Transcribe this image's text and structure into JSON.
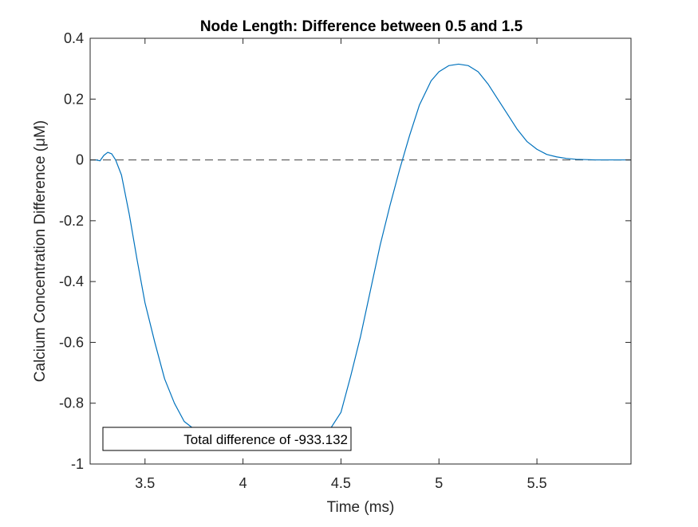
{
  "chart_data": {
    "type": "line",
    "title": "Node Length: Difference between 0.5 and 1.5",
    "xlabel": "Time (ms)",
    "ylabel": "Calcium Concentration Difference (μM)",
    "xlim": [
      3.22,
      5.98
    ],
    "ylim": [
      -1,
      0.4
    ],
    "xticks": [
      3.5,
      4,
      4.5,
      5,
      5.5
    ],
    "xtick_labels": [
      "3.5",
      "4",
      "4.5",
      "5",
      "5.5"
    ],
    "yticks": [
      -1,
      -0.8,
      -0.6,
      -0.4,
      -0.2,
      0,
      0.2,
      0.4
    ],
    "ytick_labels": [
      "-1",
      "-0.8",
      "-0.6",
      "-0.4",
      "-0.2",
      "0",
      "0.2",
      "0.4"
    ],
    "grid": false,
    "reference_line": {
      "y": 0,
      "style": "dashed",
      "color": "#404040"
    },
    "annotation": {
      "text": "Total difference of -933.132",
      "placement": "bottom-left"
    },
    "line_color": "#0072bd",
    "series": [
      {
        "x": [
          3.22,
          3.25,
          3.27,
          3.29,
          3.31,
          3.33,
          3.35,
          3.38,
          3.42,
          3.46,
          3.5,
          3.55,
          3.6,
          3.65,
          3.7,
          3.75,
          3.8,
          3.85,
          3.9,
          4.0,
          4.1,
          4.2,
          4.3,
          4.4,
          4.45,
          4.5,
          4.55,
          4.6,
          4.65,
          4.7,
          4.75,
          4.8,
          4.85,
          4.9,
          4.93,
          4.96,
          5.0,
          5.05,
          5.1,
          5.15,
          5.2,
          5.25,
          5.3,
          5.35,
          5.4,
          5.45,
          5.5,
          5.55,
          5.6,
          5.65,
          5.7,
          5.8,
          5.9,
          5.98
        ],
        "y": [
          0.0,
          0.0,
          -0.003,
          0.015,
          0.025,
          0.02,
          0.0,
          -0.05,
          -0.18,
          -0.33,
          -0.47,
          -0.6,
          -0.72,
          -0.8,
          -0.86,
          -0.885,
          -0.888,
          -0.89,
          -0.89,
          -0.89,
          -0.89,
          -0.89,
          -0.89,
          -0.89,
          -0.88,
          -0.83,
          -0.71,
          -0.58,
          -0.43,
          -0.28,
          -0.15,
          -0.03,
          0.08,
          0.18,
          0.22,
          0.26,
          0.29,
          0.31,
          0.315,
          0.31,
          0.29,
          0.25,
          0.2,
          0.15,
          0.1,
          0.06,
          0.035,
          0.018,
          0.01,
          0.005,
          0.002,
          0.0,
          0.0,
          0.0
        ]
      }
    ]
  }
}
